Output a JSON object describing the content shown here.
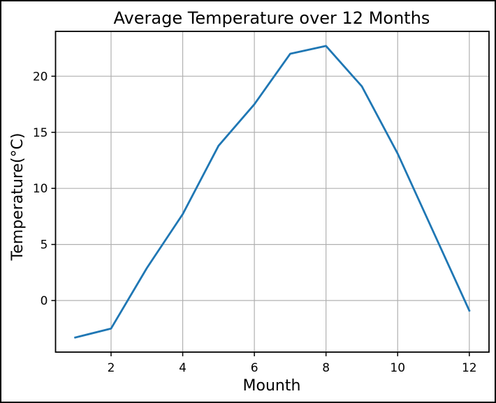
{
  "figure": {
    "kind": "matplotlib-line-plot"
  },
  "chart_data": {
    "type": "line",
    "title": "Average Temperature over 12 Months",
    "xlabel": "Mounth",
    "ylabel": "Temperature(°C)",
    "x": [
      1,
      2,
      3,
      4,
      5,
      6,
      7,
      8,
      9,
      10,
      11,
      12
    ],
    "values": [
      -3.3,
      -2.5,
      2.9,
      7.7,
      13.8,
      17.5,
      22.0,
      22.7,
      19.1,
      13.1,
      6.1,
      -0.9
    ],
    "series_name": "Average temperature",
    "xticks": [
      2,
      4,
      6,
      8,
      10,
      12
    ],
    "yticks": [
      0,
      5,
      10,
      15,
      20
    ],
    "xlim": [
      0.45,
      12.55
    ],
    "ylim": [
      -4.6,
      24.0
    ],
    "grid": true,
    "legend_visible": false,
    "line_color": "#1f77b4",
    "grid_color": "#b0b0b0",
    "spine_color": "#000000",
    "tick_label_color": "#000000",
    "background": "#ffffff"
  }
}
